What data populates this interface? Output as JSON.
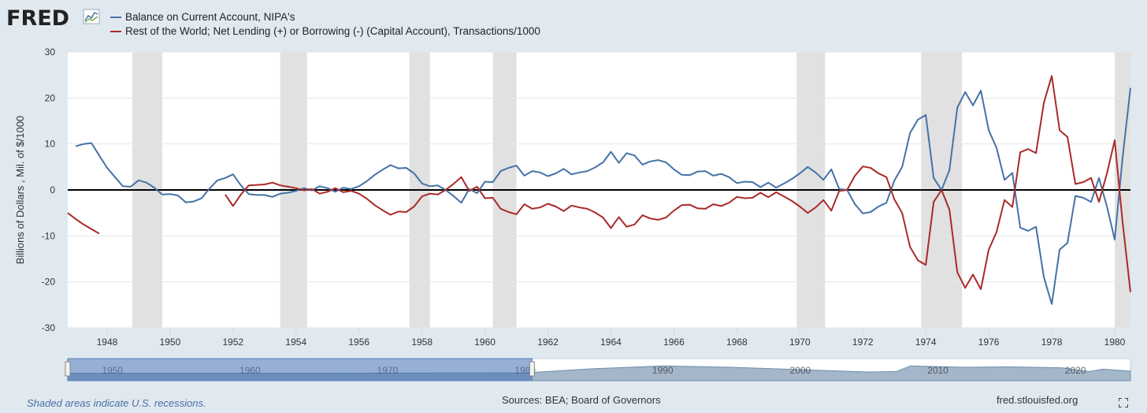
{
  "header": {
    "logo_text": "FRED",
    "legend": [
      {
        "label": "Balance on Current Account, NIPA's",
        "color": "#4572a7"
      },
      {
        "label": "Rest of the World; Net Lending (+) or Borrowing (-) (Capital Account), Transactions/1000",
        "color": "#aa2a2a"
      }
    ]
  },
  "footer": {
    "recession_note": "Shaded areas indicate U.S. recessions.",
    "sources": "Sources: BEA; Board of Governors",
    "url": "fred.stlouisfed.org"
  },
  "chart_data": {
    "type": "line",
    "xlabel": "",
    "ylabel": "Billions of Dollars , Mil. of $/1000",
    "xlim": [
      1946.75,
      1980.5
    ],
    "ylim": [
      -30,
      30
    ],
    "yticks": [
      -30,
      -20,
      -10,
      0,
      10,
      20,
      30
    ],
    "xticks": [
      1948,
      1950,
      1952,
      1954,
      1956,
      1958,
      1960,
      1962,
      1964,
      1966,
      1968,
      1970,
      1972,
      1974,
      1976,
      1978,
      1980
    ],
    "zero_line": true,
    "grid": true,
    "recessions": [
      [
        1948.8,
        1949.75
      ],
      [
        1953.5,
        1954.35
      ],
      [
        1957.6,
        1958.25
      ],
      [
        1960.25,
        1961.0
      ],
      [
        1969.9,
        1970.8
      ],
      [
        1973.85,
        1975.15
      ],
      [
        1980.0,
        1980.5
      ]
    ],
    "series": [
      {
        "name": "Balance on Current Account, NIPA's",
        "color": "#4572a7",
        "points": [
          [
            1947.0,
            9.5
          ],
          [
            1947.25,
            10.0
          ],
          [
            1947.5,
            10.2
          ],
          [
            1947.75,
            7.5
          ],
          [
            1948.0,
            4.8
          ],
          [
            1948.25,
            2.8
          ],
          [
            1948.5,
            0.8
          ],
          [
            1948.75,
            0.7
          ],
          [
            1949.0,
            2.1
          ],
          [
            1949.25,
            1.6
          ],
          [
            1949.5,
            0.5
          ],
          [
            1949.75,
            -1.0
          ],
          [
            1950.0,
            -0.9
          ],
          [
            1950.25,
            -1.2
          ],
          [
            1950.5,
            -2.7
          ],
          [
            1950.75,
            -2.5
          ],
          [
            1951.0,
            -1.8
          ],
          [
            1951.25,
            0.3
          ],
          [
            1951.5,
            2.1
          ],
          [
            1951.75,
            2.6
          ],
          [
            1952.0,
            3.4
          ],
          [
            1952.25,
            1.0
          ],
          [
            1952.5,
            -0.9
          ],
          [
            1952.75,
            -1.1
          ],
          [
            1953.0,
            -1.1
          ],
          [
            1953.25,
            -1.5
          ],
          [
            1953.5,
            -0.8
          ],
          [
            1953.75,
            -0.6
          ],
          [
            1954.0,
            -0.2
          ],
          [
            1954.25,
            0.4
          ],
          [
            1954.5,
            -0.1
          ],
          [
            1954.75,
            0.8
          ],
          [
            1955.0,
            0.4
          ],
          [
            1955.25,
            -0.4
          ],
          [
            1955.5,
            0.5
          ],
          [
            1955.75,
            0.2
          ],
          [
            1956.0,
            0.8
          ],
          [
            1956.25,
            1.9
          ],
          [
            1956.5,
            3.3
          ],
          [
            1956.75,
            4.4
          ],
          [
            1957.0,
            5.4
          ],
          [
            1957.25,
            4.7
          ],
          [
            1957.5,
            4.8
          ],
          [
            1957.75,
            3.6
          ],
          [
            1958.0,
            1.4
          ],
          [
            1958.25,
            0.8
          ],
          [
            1958.5,
            1.0
          ],
          [
            1958.75,
            0.0
          ],
          [
            1959.0,
            -1.3
          ],
          [
            1959.25,
            -2.8
          ],
          [
            1959.5,
            0.2
          ],
          [
            1959.75,
            -0.7
          ],
          [
            1960.0,
            1.8
          ],
          [
            1960.25,
            1.7
          ],
          [
            1960.5,
            4.1
          ],
          [
            1960.75,
            4.8
          ],
          [
            1961.0,
            5.3
          ],
          [
            1961.25,
            3.1
          ],
          [
            1961.5,
            4.1
          ],
          [
            1961.75,
            3.8
          ],
          [
            1962.0,
            3.0
          ],
          [
            1962.25,
            3.6
          ],
          [
            1962.5,
            4.6
          ],
          [
            1962.75,
            3.4
          ],
          [
            1963.0,
            3.8
          ],
          [
            1963.25,
            4.1
          ],
          [
            1963.5,
            4.9
          ],
          [
            1963.75,
            6.0
          ],
          [
            1964.0,
            8.3
          ],
          [
            1964.25,
            5.9
          ],
          [
            1964.5,
            8.0
          ],
          [
            1964.75,
            7.5
          ],
          [
            1965.0,
            5.5
          ],
          [
            1965.25,
            6.2
          ],
          [
            1965.5,
            6.5
          ],
          [
            1965.75,
            6.0
          ],
          [
            1966.0,
            4.5
          ],
          [
            1966.25,
            3.3
          ],
          [
            1966.5,
            3.2
          ],
          [
            1966.75,
            4.0
          ],
          [
            1967.0,
            4.1
          ],
          [
            1967.25,
            3.1
          ],
          [
            1967.5,
            3.5
          ],
          [
            1967.75,
            2.8
          ],
          [
            1968.0,
            1.5
          ],
          [
            1968.25,
            1.8
          ],
          [
            1968.5,
            1.7
          ],
          [
            1968.75,
            0.6
          ],
          [
            1969.0,
            1.6
          ],
          [
            1969.25,
            0.5
          ],
          [
            1969.5,
            1.4
          ],
          [
            1969.75,
            2.4
          ],
          [
            1970.0,
            3.6
          ],
          [
            1970.25,
            5.0
          ],
          [
            1970.5,
            3.8
          ],
          [
            1970.75,
            2.2
          ],
          [
            1971.0,
            4.5
          ],
          [
            1971.25,
            0.2
          ],
          [
            1971.5,
            0.0
          ],
          [
            1971.75,
            -3.1
          ],
          [
            1972.0,
            -5.1
          ],
          [
            1972.25,
            -4.8
          ],
          [
            1972.5,
            -3.6
          ],
          [
            1972.75,
            -2.8
          ],
          [
            1973.0,
            2.0
          ],
          [
            1973.25,
            5.0
          ],
          [
            1973.5,
            12.4
          ],
          [
            1973.75,
            15.3
          ],
          [
            1974.0,
            16.3
          ],
          [
            1974.25,
            2.6
          ],
          [
            1974.5,
            0.0
          ],
          [
            1974.75,
            4.3
          ],
          [
            1975.0,
            17.9
          ],
          [
            1975.25,
            21.3
          ],
          [
            1975.5,
            18.4
          ],
          [
            1975.75,
            21.6
          ],
          [
            1976.0,
            13.0
          ],
          [
            1976.25,
            9.1
          ],
          [
            1976.5,
            2.2
          ],
          [
            1976.75,
            3.7
          ],
          [
            1977.0,
            -8.2
          ],
          [
            1977.25,
            -8.9
          ],
          [
            1977.5,
            -8.0
          ],
          [
            1977.75,
            -19.0
          ],
          [
            1978.0,
            -24.8
          ],
          [
            1978.25,
            -13.0
          ],
          [
            1978.5,
            -11.5
          ],
          [
            1978.75,
            -1.3
          ],
          [
            1979.0,
            -1.7
          ],
          [
            1979.25,
            -2.6
          ],
          [
            1979.5,
            2.6
          ],
          [
            1979.75,
            -3.5
          ],
          [
            1980.0,
            -10.8
          ],
          [
            1980.25,
            7.0
          ],
          [
            1980.5,
            22.2
          ]
        ]
      },
      {
        "name": "Rest of the World; Net Lending (+) or Borrowing (-) (Capital Account), Transactions/1000",
        "color": "#aa2a2a",
        "points": [
          [
            1946.75,
            -5.0
          ],
          [
            1947.0,
            -6.3
          ],
          [
            1947.25,
            -7.5
          ],
          [
            1947.5,
            -8.5
          ],
          [
            1947.75,
            -9.5
          ],
          null,
          [
            1951.75,
            -1.0
          ],
          [
            1952.0,
            -3.5
          ],
          [
            1952.25,
            -1.0
          ],
          [
            1952.5,
            1.0
          ],
          [
            1952.75,
            1.1
          ],
          [
            1953.0,
            1.2
          ],
          [
            1953.25,
            1.6
          ],
          [
            1953.5,
            1.0
          ],
          [
            1953.75,
            0.7
          ],
          [
            1954.0,
            0.4
          ],
          [
            1954.25,
            -0.1
          ],
          [
            1954.5,
            0.2
          ],
          [
            1954.75,
            -0.8
          ],
          [
            1955.0,
            -0.4
          ],
          [
            1955.25,
            0.4
          ],
          [
            1955.5,
            -0.5
          ],
          [
            1955.75,
            -0.2
          ],
          [
            1956.0,
            -0.8
          ],
          [
            1956.25,
            -1.9
          ],
          [
            1956.5,
            -3.3
          ],
          [
            1956.75,
            -4.4
          ],
          [
            1957.0,
            -5.4
          ],
          [
            1957.25,
            -4.7
          ],
          [
            1957.5,
            -4.8
          ],
          [
            1957.75,
            -3.6
          ],
          [
            1958.0,
            -1.4
          ],
          [
            1958.25,
            -0.8
          ],
          [
            1958.5,
            -1.0
          ],
          [
            1958.75,
            0.0
          ],
          [
            1959.0,
            1.3
          ],
          [
            1959.25,
            2.8
          ],
          [
            1959.5,
            -0.2
          ],
          [
            1959.75,
            0.7
          ],
          [
            1960.0,
            -1.8
          ],
          [
            1960.25,
            -1.7
          ],
          [
            1960.5,
            -4.1
          ],
          [
            1960.75,
            -4.8
          ],
          [
            1961.0,
            -5.3
          ],
          [
            1961.25,
            -3.1
          ],
          [
            1961.5,
            -4.1
          ],
          [
            1961.75,
            -3.8
          ],
          [
            1962.0,
            -3.0
          ],
          [
            1962.25,
            -3.6
          ],
          [
            1962.5,
            -4.6
          ],
          [
            1962.75,
            -3.4
          ],
          [
            1963.0,
            -3.8
          ],
          [
            1963.25,
            -4.1
          ],
          [
            1963.5,
            -4.9
          ],
          [
            1963.75,
            -6.0
          ],
          [
            1964.0,
            -8.3
          ],
          [
            1964.25,
            -5.9
          ],
          [
            1964.5,
            -8.0
          ],
          [
            1964.75,
            -7.5
          ],
          [
            1965.0,
            -5.5
          ],
          [
            1965.25,
            -6.2
          ],
          [
            1965.5,
            -6.5
          ],
          [
            1965.75,
            -6.0
          ],
          [
            1966.0,
            -4.5
          ],
          [
            1966.25,
            -3.3
          ],
          [
            1966.5,
            -3.2
          ],
          [
            1966.75,
            -4.0
          ],
          [
            1967.0,
            -4.1
          ],
          [
            1967.25,
            -3.1
          ],
          [
            1967.5,
            -3.5
          ],
          [
            1967.75,
            -2.8
          ],
          [
            1968.0,
            -1.5
          ],
          [
            1968.25,
            -1.8
          ],
          [
            1968.5,
            -1.7
          ],
          [
            1968.75,
            -0.6
          ],
          [
            1969.0,
            -1.6
          ],
          [
            1969.25,
            -0.5
          ],
          [
            1969.5,
            -1.4
          ],
          [
            1969.75,
            -2.4
          ],
          [
            1970.0,
            -3.6
          ],
          [
            1970.25,
            -5.0
          ],
          [
            1970.5,
            -3.8
          ],
          [
            1970.75,
            -2.2
          ],
          [
            1971.0,
            -4.5
          ],
          [
            1971.25,
            -0.2
          ],
          [
            1971.5,
            0.0
          ],
          [
            1971.75,
            3.1
          ],
          [
            1972.0,
            5.1
          ],
          [
            1972.25,
            4.8
          ],
          [
            1972.5,
            3.6
          ],
          [
            1972.75,
            2.8
          ],
          [
            1973.0,
            -2.0
          ],
          [
            1973.25,
            -5.0
          ],
          [
            1973.5,
            -12.4
          ],
          [
            1973.75,
            -15.3
          ],
          [
            1974.0,
            -16.3
          ],
          [
            1974.25,
            -2.6
          ],
          [
            1974.5,
            0.0
          ],
          [
            1974.75,
            -4.3
          ],
          [
            1975.0,
            -17.9
          ],
          [
            1975.25,
            -21.3
          ],
          [
            1975.5,
            -18.4
          ],
          [
            1975.75,
            -21.6
          ],
          [
            1976.0,
            -13.0
          ],
          [
            1976.25,
            -9.1
          ],
          [
            1976.5,
            -2.2
          ],
          [
            1976.75,
            -3.7
          ],
          [
            1977.0,
            8.2
          ],
          [
            1977.25,
            8.9
          ],
          [
            1977.5,
            8.0
          ],
          [
            1977.75,
            19.0
          ],
          [
            1978.0,
            24.8
          ],
          [
            1978.25,
            13.0
          ],
          [
            1978.5,
            11.5
          ],
          [
            1978.75,
            1.3
          ],
          [
            1979.0,
            1.7
          ],
          [
            1979.25,
            2.6
          ],
          [
            1979.5,
            -2.6
          ],
          [
            1979.75,
            3.5
          ],
          [
            1980.0,
            10.8
          ],
          [
            1980.25,
            -7.0
          ],
          [
            1980.5,
            -22.2
          ]
        ]
      }
    ]
  },
  "navigator": {
    "labels": [
      "1950",
      "1960",
      "1970",
      "1980",
      "1990",
      "2000",
      "2010",
      "2020"
    ],
    "selected_range": [
      1946.75,
      1980.5
    ],
    "full_range": [
      1946.75,
      2024.0
    ]
  }
}
